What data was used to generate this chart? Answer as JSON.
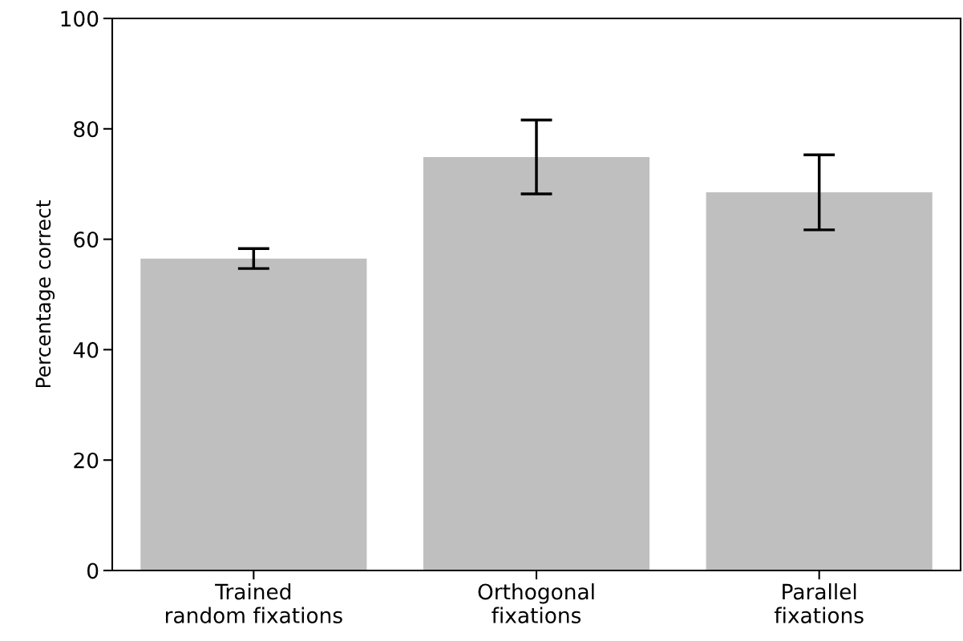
{
  "chart_data": {
    "type": "bar",
    "ylabel": "Percentage correct",
    "categories": [
      "Trained\nrandom fixations",
      "Orthogonal\nfixations",
      "Parallel\nfixations"
    ],
    "values": [
      56.5,
      74.9,
      68.5
    ],
    "errors": [
      1.8,
      6.7,
      6.8
    ],
    "color": "#bfbfbf",
    "ylim": [
      0,
      100
    ],
    "yticks": [
      0,
      20,
      40,
      60,
      80,
      100
    ],
    "grid": false
  }
}
